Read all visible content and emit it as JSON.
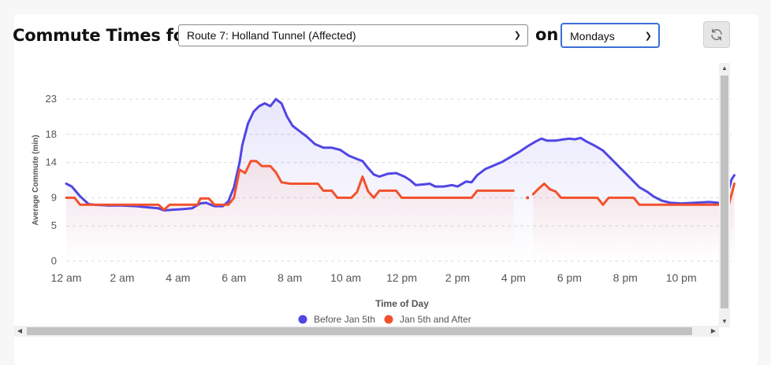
{
  "header": {
    "title": "Commute Times for",
    "route_value": "Route 7: Holland Tunnel (Affected)",
    "on_label": "on",
    "day_value": "Mondays",
    "refresh_icon": "refresh-icon"
  },
  "colors": {
    "before": "#5046e4",
    "after": "#f2512d",
    "grid": "#dcdcdc",
    "tick": "#555555"
  },
  "chart_data": {
    "type": "line",
    "xlabel": "Time of Day",
    "ylabel": "Average Commute (min)",
    "x_ticks": [
      "12 am",
      "2 am",
      "4 am",
      "6 am",
      "8 am",
      "10 am",
      "12 pm",
      "2 pm",
      "4 pm",
      "6 pm",
      "8 pm",
      "10 pm"
    ],
    "y_ticks": [
      0,
      5,
      9,
      14,
      18,
      23
    ],
    "ylim": [
      0,
      23
    ],
    "xlim": [
      0,
      23.8
    ],
    "grid": "horizontal dashed",
    "legend_position": "bottom",
    "series": [
      {
        "name": "Before Jan 5th",
        "color": "#5046e4",
        "points": [
          [
            0,
            11.0
          ],
          [
            0.2,
            10.6
          ],
          [
            0.5,
            9.2
          ],
          [
            0.8,
            8.1
          ],
          [
            1.0,
            8.0
          ],
          [
            1.5,
            7.9
          ],
          [
            2.0,
            7.9
          ],
          [
            2.5,
            7.8
          ],
          [
            3.0,
            7.6
          ],
          [
            3.3,
            7.5
          ],
          [
            3.5,
            7.2
          ],
          [
            3.8,
            7.3
          ],
          [
            4.2,
            7.4
          ],
          [
            4.5,
            7.5
          ],
          [
            4.8,
            8.2
          ],
          [
            5.0,
            8.3
          ],
          [
            5.3,
            7.8
          ],
          [
            5.6,
            7.8
          ],
          [
            5.8,
            8.5
          ],
          [
            6.0,
            10.5
          ],
          [
            6.2,
            14.0
          ],
          [
            6.3,
            16.5
          ],
          [
            6.5,
            19.5
          ],
          [
            6.7,
            21.2
          ],
          [
            6.9,
            22.0
          ],
          [
            7.1,
            22.4
          ],
          [
            7.3,
            22.0
          ],
          [
            7.5,
            23.0
          ],
          [
            7.7,
            22.4
          ],
          [
            7.9,
            20.5
          ],
          [
            8.1,
            19.2
          ],
          [
            8.3,
            18.6
          ],
          [
            8.6,
            17.7
          ],
          [
            8.9,
            16.6
          ],
          [
            9.2,
            16.1
          ],
          [
            9.5,
            16.1
          ],
          [
            9.8,
            15.8
          ],
          [
            10.1,
            15.0
          ],
          [
            10.4,
            14.5
          ],
          [
            10.6,
            14.2
          ],
          [
            10.8,
            13.2
          ],
          [
            11.0,
            12.3
          ],
          [
            11.2,
            12.0
          ],
          [
            11.5,
            12.4
          ],
          [
            11.8,
            12.5
          ],
          [
            12.1,
            12.0
          ],
          [
            12.3,
            11.5
          ],
          [
            12.5,
            10.8
          ],
          [
            12.8,
            10.9
          ],
          [
            13.0,
            11.0
          ],
          [
            13.2,
            10.6
          ],
          [
            13.5,
            10.6
          ],
          [
            13.8,
            10.8
          ],
          [
            14.0,
            10.6
          ],
          [
            14.3,
            11.3
          ],
          [
            14.5,
            11.2
          ],
          [
            14.7,
            12.2
          ],
          [
            15.0,
            13.1
          ],
          [
            15.3,
            13.6
          ],
          [
            15.6,
            14.1
          ],
          [
            15.9,
            14.8
          ],
          [
            16.2,
            15.5
          ],
          [
            16.5,
            16.3
          ],
          [
            16.8,
            17.0
          ],
          [
            17.0,
            17.4
          ],
          [
            17.2,
            17.1
          ],
          [
            17.5,
            17.1
          ],
          [
            17.8,
            17.3
          ],
          [
            18.0,
            17.4
          ],
          [
            18.2,
            17.3
          ],
          [
            18.4,
            17.5
          ],
          [
            18.6,
            17.0
          ],
          [
            18.9,
            16.4
          ],
          [
            19.2,
            15.7
          ],
          [
            19.5,
            14.5
          ],
          [
            19.8,
            13.3
          ],
          [
            20.1,
            12.1
          ],
          [
            20.3,
            11.3
          ],
          [
            20.5,
            10.5
          ],
          [
            20.8,
            9.8
          ],
          [
            21.0,
            9.2
          ],
          [
            21.3,
            8.6
          ],
          [
            21.6,
            8.3
          ],
          [
            22.0,
            8.2
          ],
          [
            22.5,
            8.3
          ],
          [
            23.0,
            8.4
          ],
          [
            23.3,
            8.3
          ],
          [
            23.5,
            8.2
          ],
          [
            23.6,
            8.7
          ],
          [
            23.8,
            11.6
          ],
          [
            23.9,
            12.2
          ]
        ]
      },
      {
        "name": "Jan 5th and After",
        "color": "#f2512d",
        "segments": [
          [
            [
              0,
              9.0
            ],
            [
              0.3,
              9.0
            ],
            [
              0.5,
              8.0
            ],
            [
              1.0,
              8.0
            ],
            [
              1.5,
              8.0
            ],
            [
              2.0,
              8.0
            ],
            [
              2.5,
              8.0
            ],
            [
              3.0,
              8.0
            ],
            [
              3.3,
              8.0
            ],
            [
              3.5,
              7.3
            ],
            [
              3.7,
              8.0
            ],
            [
              4.0,
              8.0
            ],
            [
              4.5,
              8.0
            ],
            [
              4.7,
              8.0
            ],
            [
              4.8,
              8.9
            ],
            [
              5.1,
              8.9
            ],
            [
              5.3,
              8.0
            ],
            [
              5.8,
              8.0
            ],
            [
              6.0,
              9.0
            ],
            [
              6.2,
              13.0
            ],
            [
              6.4,
              12.5
            ],
            [
              6.6,
              14.2
            ],
            [
              6.8,
              14.2
            ],
            [
              7.0,
              13.5
            ],
            [
              7.3,
              13.5
            ],
            [
              7.5,
              12.6
            ],
            [
              7.7,
              11.2
            ],
            [
              8.0,
              11.0
            ],
            [
              8.5,
              11.0
            ],
            [
              9.0,
              11.0
            ],
            [
              9.2,
              10.0
            ],
            [
              9.5,
              10.0
            ],
            [
              9.7,
              9.0
            ],
            [
              10.2,
              9.0
            ],
            [
              10.4,
              9.8
            ],
            [
              10.6,
              12.0
            ],
            [
              10.8,
              9.9
            ],
            [
              11.0,
              9.0
            ],
            [
              11.2,
              10.0
            ],
            [
              11.5,
              10.0
            ],
            [
              11.8,
              10.0
            ],
            [
              12.0,
              9.0
            ],
            [
              12.5,
              9.0
            ],
            [
              13.0,
              9.0
            ],
            [
              13.5,
              9.0
            ],
            [
              14.0,
              9.0
            ],
            [
              14.5,
              9.0
            ],
            [
              14.7,
              10.0
            ],
            [
              15.0,
              10.0
            ],
            [
              15.5,
              10.0
            ],
            [
              16.0,
              10.0
            ]
          ],
          [
            [
              16.5,
              9.0
            ]
          ],
          [
            [
              16.7,
              9.5
            ],
            [
              16.9,
              10.3
            ],
            [
              17.1,
              11.0
            ],
            [
              17.3,
              10.2
            ],
            [
              17.5,
              9.9
            ],
            [
              17.7,
              9.0
            ],
            [
              18.0,
              9.0
            ],
            [
              18.5,
              9.0
            ],
            [
              19.0,
              9.0
            ],
            [
              19.2,
              8.0
            ],
            [
              19.4,
              9.0
            ],
            [
              19.8,
              9.0
            ],
            [
              20.3,
              9.0
            ],
            [
              20.5,
              8.0
            ],
            [
              21.0,
              8.0
            ],
            [
              21.5,
              8.0
            ],
            [
              22.0,
              8.0
            ],
            [
              22.5,
              8.0
            ],
            [
              23.0,
              8.0
            ],
            [
              23.5,
              8.0
            ],
            [
              23.7,
              8.0
            ],
            [
              23.9,
              11.0
            ]
          ]
        ]
      }
    ]
  }
}
